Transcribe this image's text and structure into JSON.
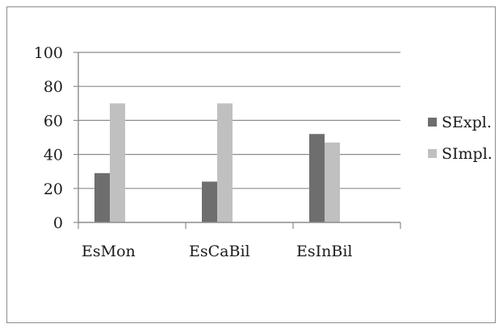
{
  "chart_data": {
    "type": "bar",
    "title": "",
    "xlabel": "",
    "ylabel": "",
    "categories": [
      "EsMon",
      "EsCaBil",
      "EsInBil"
    ],
    "series": [
      {
        "name": "SExpl.",
        "values": [
          29,
          24,
          52
        ],
        "color": "#6e6e6e"
      },
      {
        "name": "SImpl.",
        "values": [
          70,
          70,
          47
        ],
        "color": "#c0c0c0"
      }
    ],
    "ylim": [
      0,
      100
    ],
    "yticks": [
      0,
      20,
      40,
      60,
      80,
      100
    ],
    "grid": true,
    "legend_position": "right"
  }
}
